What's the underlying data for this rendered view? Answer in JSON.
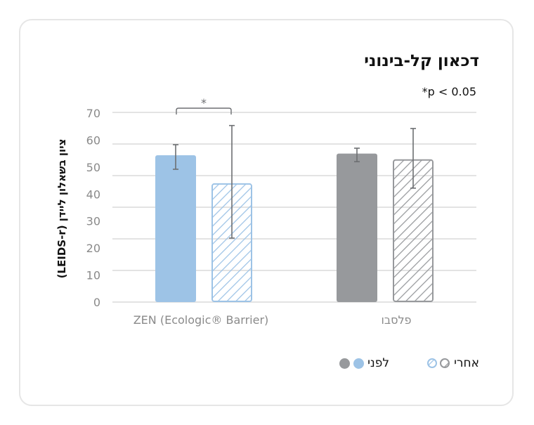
{
  "chart_data": {
    "type": "bar",
    "title": "דכאון קל-בינוני",
    "annotation": "*p < 0.05",
    "significance_marker": "*",
    "ylabel": "ציון בשאלון ליידן (LEIDS-r)",
    "xlabel": "",
    "ylim": [
      0,
      70
    ],
    "yticks": [
      0,
      10,
      20,
      30,
      40,
      50,
      60,
      70
    ],
    "categories": [
      "ZEN (Ecologic® Barrier)",
      "פלסבו"
    ],
    "series": [
      {
        "name": "לפני",
        "values": [
          54.4,
          55.0
        ],
        "error_low": [
          49.2,
          52.0
        ],
        "error_high": [
          58.3,
          57.0
        ],
        "colors": [
          "#9dc3e6",
          "#97999c"
        ],
        "pattern": "solid"
      },
      {
        "name": "אחרי",
        "values": [
          44.0,
          52.9
        ],
        "error_low": [
          23.7,
          42.2
        ],
        "error_high": [
          65.4,
          64.3
        ],
        "colors": [
          "#9dc3e6",
          "#97999c"
        ],
        "pattern": "hatched"
      }
    ],
    "grid": true,
    "legend_placement": "bottom"
  }
}
